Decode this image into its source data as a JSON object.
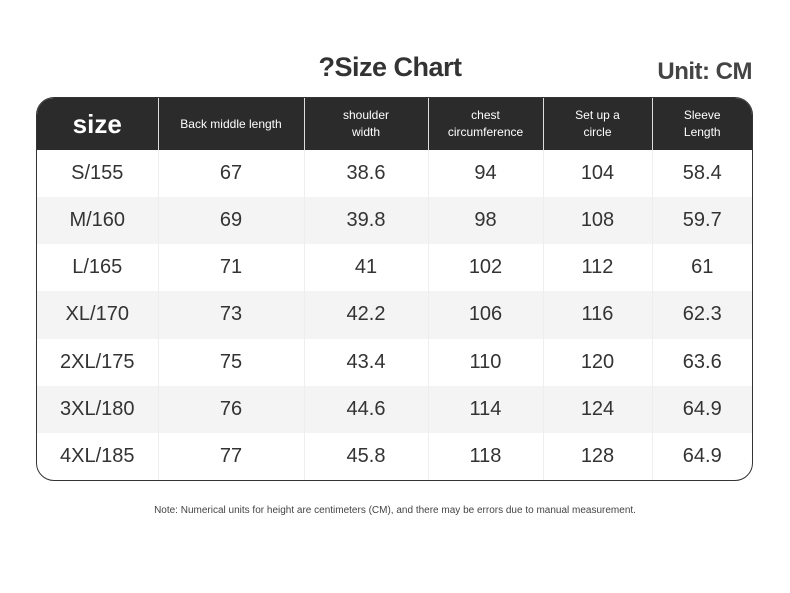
{
  "header": {
    "title": "?Size Chart",
    "unit": "Unit: CM"
  },
  "table": {
    "columns": [
      "size",
      "Back middle length",
      "shoulder width",
      "chest circumference",
      "Set up a circle",
      "Sleeve Length"
    ],
    "rows": [
      [
        "S/155",
        67,
        38.6,
        94,
        104,
        58.4
      ],
      [
        "M/160",
        69,
        39.8,
        98,
        108,
        59.7
      ],
      [
        "L/165",
        71,
        41,
        102,
        112,
        61
      ],
      [
        "XL/170",
        73,
        42.2,
        106,
        116,
        62.3
      ],
      [
        "2XL/175",
        75,
        43.4,
        110,
        120,
        63.6
      ],
      [
        "3XL/180",
        76,
        44.6,
        114,
        124,
        64.9
      ],
      [
        "4XL/185",
        77,
        45.8,
        118,
        128,
        64.9
      ]
    ]
  },
  "note": "Note: Numerical units for height are centimeters (CM), and there may be errors due to manual measurement."
}
